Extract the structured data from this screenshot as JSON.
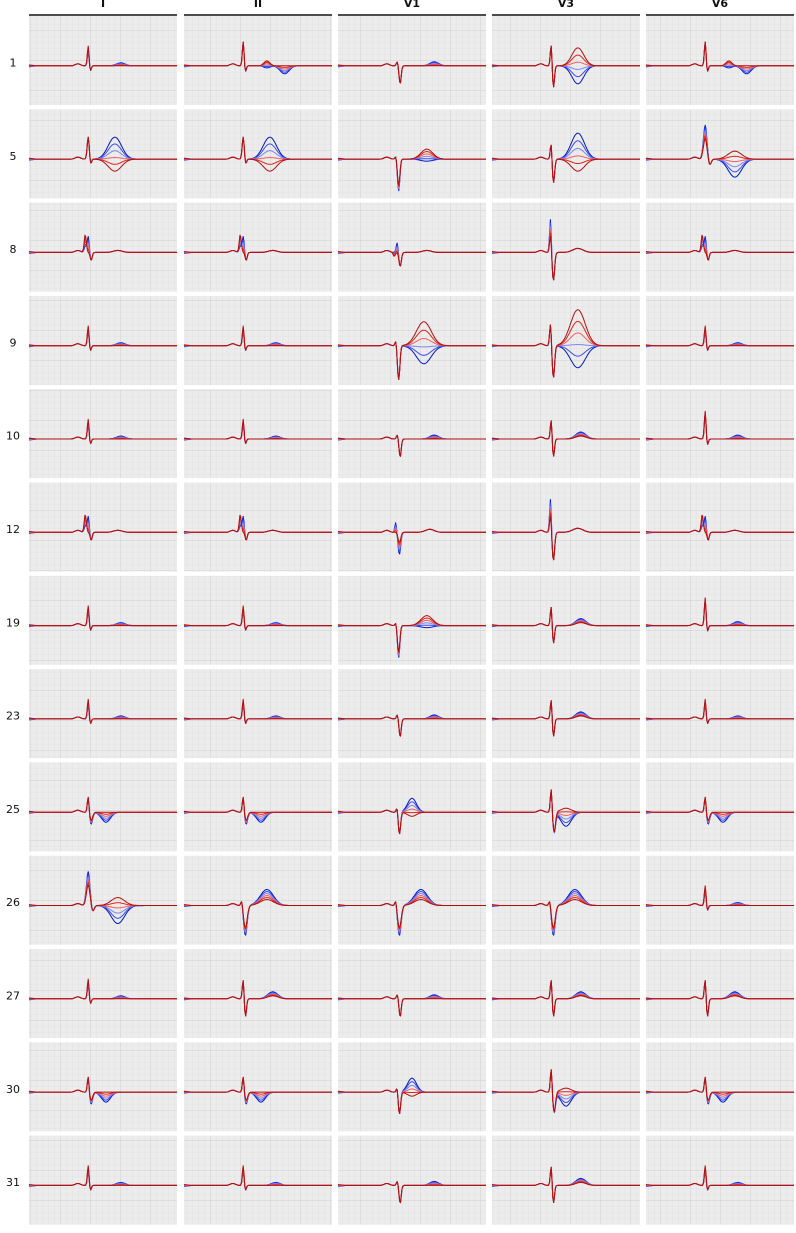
{
  "chart_data": {
    "type": "line",
    "columns": [
      "I",
      "II",
      "V1",
      "V3",
      "V6"
    ],
    "rows": [
      "1",
      "5",
      "8",
      "9",
      "10",
      "12",
      "19",
      "23",
      "25",
      "26",
      "27",
      "30",
      "31"
    ],
    "grid": true,
    "series_colors": [
      "#0018c8",
      "#3a4cf0",
      "#7a86f6",
      "#f06060",
      "#e02418",
      "#b01010"
    ],
    "panel_background": "#ececec",
    "grid_color": "#dcdcdc",
    "traces": {
      "1": {
        "I": "r",
        "II": "r+tu",
        "V1": "q",
        "V3": "rs+st",
        "V6": "r+tu"
      },
      "5": {
        "I": "r+T",
        "II": "r+T",
        "V1": "Q",
        "V3": "rs+T",
        "V6": "R+T"
      },
      "8": {
        "I": "fr",
        "II": "fr",
        "V1": "fs",
        "V3": "RS",
        "V6": "fr"
      },
      "9": {
        "I": "r",
        "II": "r",
        "V1": "Qst",
        "V3": "RSst",
        "V6": "r"
      },
      "10": {
        "I": "r",
        "II": "r",
        "V1": "q",
        "V3": "rs",
        "V6": "R"
      },
      "12": {
        "I": "fr",
        "II": "fr",
        "V1": "fQ",
        "V3": "RS",
        "V6": "fr"
      },
      "19": {
        "I": "r",
        "II": "r",
        "V1": "Q",
        "V3": "rs",
        "V6": "R"
      },
      "23": {
        "I": "r",
        "II": "r",
        "V1": "q",
        "V3": "rs",
        "V6": "r"
      },
      "25": {
        "I": "rW",
        "II": "rW",
        "V1": "wQ",
        "V3": "rsW",
        "V6": "rW"
      },
      "26": {
        "I": "R+T",
        "II": "Qt",
        "V1": "Qt",
        "V3": "Qt",
        "V6": "r"
      },
      "27": {
        "I": "r",
        "II": "rs",
        "V1": "q",
        "V3": "rs",
        "V6": "rs"
      },
      "30": {
        "I": "rW",
        "II": "rW",
        "V1": "wQ",
        "V3": "rsW",
        "V6": "rW"
      },
      "31": {
        "I": "r",
        "II": "r",
        "V1": "q",
        "V3": "rs",
        "V6": "r"
      }
    }
  }
}
